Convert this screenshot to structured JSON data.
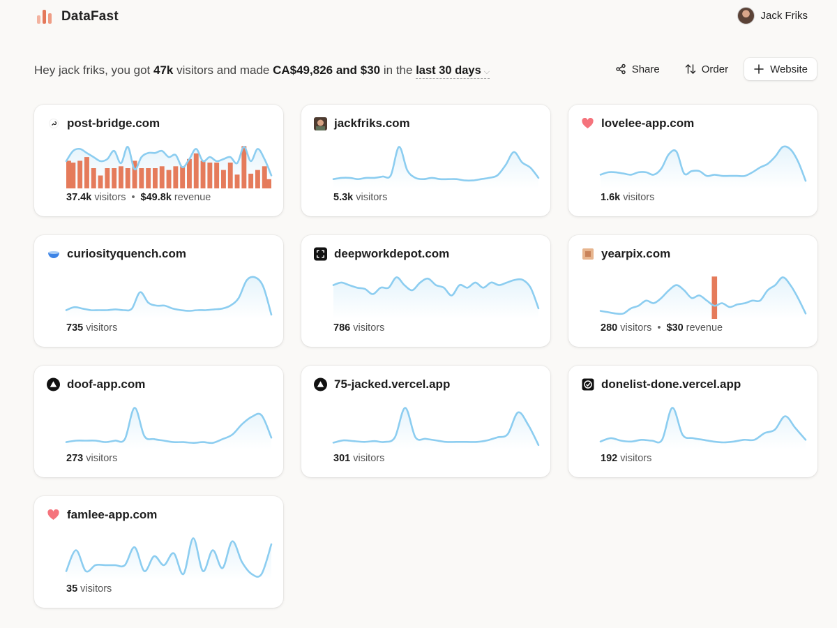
{
  "app": {
    "name": "DataFast"
  },
  "user": {
    "name": "Jack Friks"
  },
  "summary": {
    "greeting": "Hey jack friks, you got",
    "visitors": "47k",
    "mid": "visitors and made",
    "revenue": "CA$49,826 and $30",
    "in_the": "in the",
    "range": "last 30 days"
  },
  "actions": {
    "share": "Share",
    "order": "Order",
    "website": "Website"
  },
  "labels": {
    "visitors": "visitors",
    "revenue": "revenue"
  },
  "colors": {
    "line": "#8ccdf0",
    "bar": "#e57b5b",
    "accent": "#e4785a"
  },
  "sites": [
    {
      "name": "post-bridge.com",
      "icon": "post-bridge-icon",
      "visitors": "37.4k",
      "revenue": "$49.8k",
      "series": [
        12,
        17,
        18,
        16,
        14,
        12,
        13,
        17,
        11,
        19,
        8,
        14,
        16,
        16,
        17,
        14,
        15,
        9,
        13,
        18,
        12,
        14,
        12,
        13,
        14,
        11,
        19,
        12,
        18,
        13,
        5
      ],
      "bars": [
        30,
        28,
        30,
        34,
        22,
        14,
        22,
        22,
        24,
        22,
        30,
        22,
        22,
        22,
        24,
        20,
        24,
        24,
        32,
        38,
        30,
        28,
        28,
        20,
        28,
        15,
        46,
        16,
        20,
        24,
        10
      ]
    },
    {
      "name": "jackfriks.com",
      "icon": "avatar-icon",
      "visitors": "5.3k",
      "series": [
        5,
        6,
        6,
        5,
        6,
        6,
        7,
        8,
        30,
        12,
        6,
        5,
        6,
        5,
        5,
        5,
        4,
        4,
        5,
        6,
        8,
        16,
        26,
        18,
        14,
        6
      ]
    },
    {
      "name": "lovelee-app.com",
      "icon": "heart-icon",
      "visitors": "1.6k",
      "series": [
        9,
        11,
        11,
        10,
        9,
        11,
        11,
        9,
        14,
        26,
        28,
        10,
        12,
        12,
        8,
        9,
        8,
        8,
        8,
        8,
        11,
        15,
        18,
        24,
        32,
        30,
        20,
        4
      ]
    },
    {
      "name": "curiosityquench.com",
      "icon": "bowl-icon",
      "visitors": "735",
      "series": [
        8,
        12,
        10,
        8,
        8,
        8,
        9,
        8,
        10,
        32,
        18,
        14,
        14,
        10,
        8,
        7,
        8,
        8,
        9,
        10,
        14,
        24,
        48,
        52,
        40,
        2
      ]
    },
    {
      "name": "deepworkdepot.com",
      "icon": "focus-icon",
      "visitors": "786",
      "series": [
        24,
        26,
        24,
        22,
        21,
        17,
        22,
        22,
        30,
        24,
        20,
        26,
        29,
        24,
        22,
        16,
        24,
        22,
        26,
        22,
        26,
        24,
        26,
        28,
        28,
        22,
        6
      ]
    },
    {
      "name": "yearpix.com",
      "icon": "yearpix-icon",
      "visitors": "280",
      "revenue": "$30",
      "series": [
        4,
        3,
        2,
        2,
        6,
        8,
        12,
        10,
        14,
        20,
        24,
        20,
        14,
        16,
        12,
        8,
        10,
        7,
        9,
        10,
        12,
        12,
        20,
        24,
        30,
        24,
        14,
        2
      ],
      "bars": [
        0,
        0,
        0,
        0,
        0,
        0,
        0,
        0,
        0,
        0,
        0,
        0,
        0,
        0,
        0,
        46,
        0,
        0,
        0,
        0,
        0,
        0,
        0,
        0,
        0,
        0,
        0,
        0
      ]
    },
    {
      "name": "doof-app.com",
      "icon": "triangle-icon",
      "visitors": "273",
      "series": [
        6,
        8,
        8,
        8,
        6,
        8,
        10,
        52,
        14,
        10,
        8,
        6,
        6,
        5,
        6,
        5,
        10,
        16,
        30,
        40,
        42,
        12
      ]
    },
    {
      "name": "75-jacked.vercel.app",
      "icon": "triangle-icon",
      "visitors": "301",
      "series": [
        5,
        8,
        7,
        6,
        7,
        6,
        12,
        50,
        12,
        10,
        8,
        6,
        6,
        6,
        6,
        8,
        12,
        16,
        44,
        28,
        2
      ]
    },
    {
      "name": "donelist-done.vercel.app",
      "icon": "checkbox-icon",
      "visitors": "192",
      "series": [
        6,
        10,
        7,
        6,
        8,
        7,
        8,
        46,
        14,
        10,
        8,
        6,
        5,
        6,
        8,
        8,
        16,
        20,
        36,
        22,
        8
      ]
    },
    {
      "name": "famlee-app.com",
      "icon": "heart-icon",
      "visitors": "35",
      "series": [
        4,
        18,
        4,
        8,
        8,
        8,
        8,
        20,
        4,
        14,
        8,
        16,
        2,
        26,
        4,
        18,
        6,
        24,
        10,
        2,
        2,
        22
      ]
    }
  ]
}
